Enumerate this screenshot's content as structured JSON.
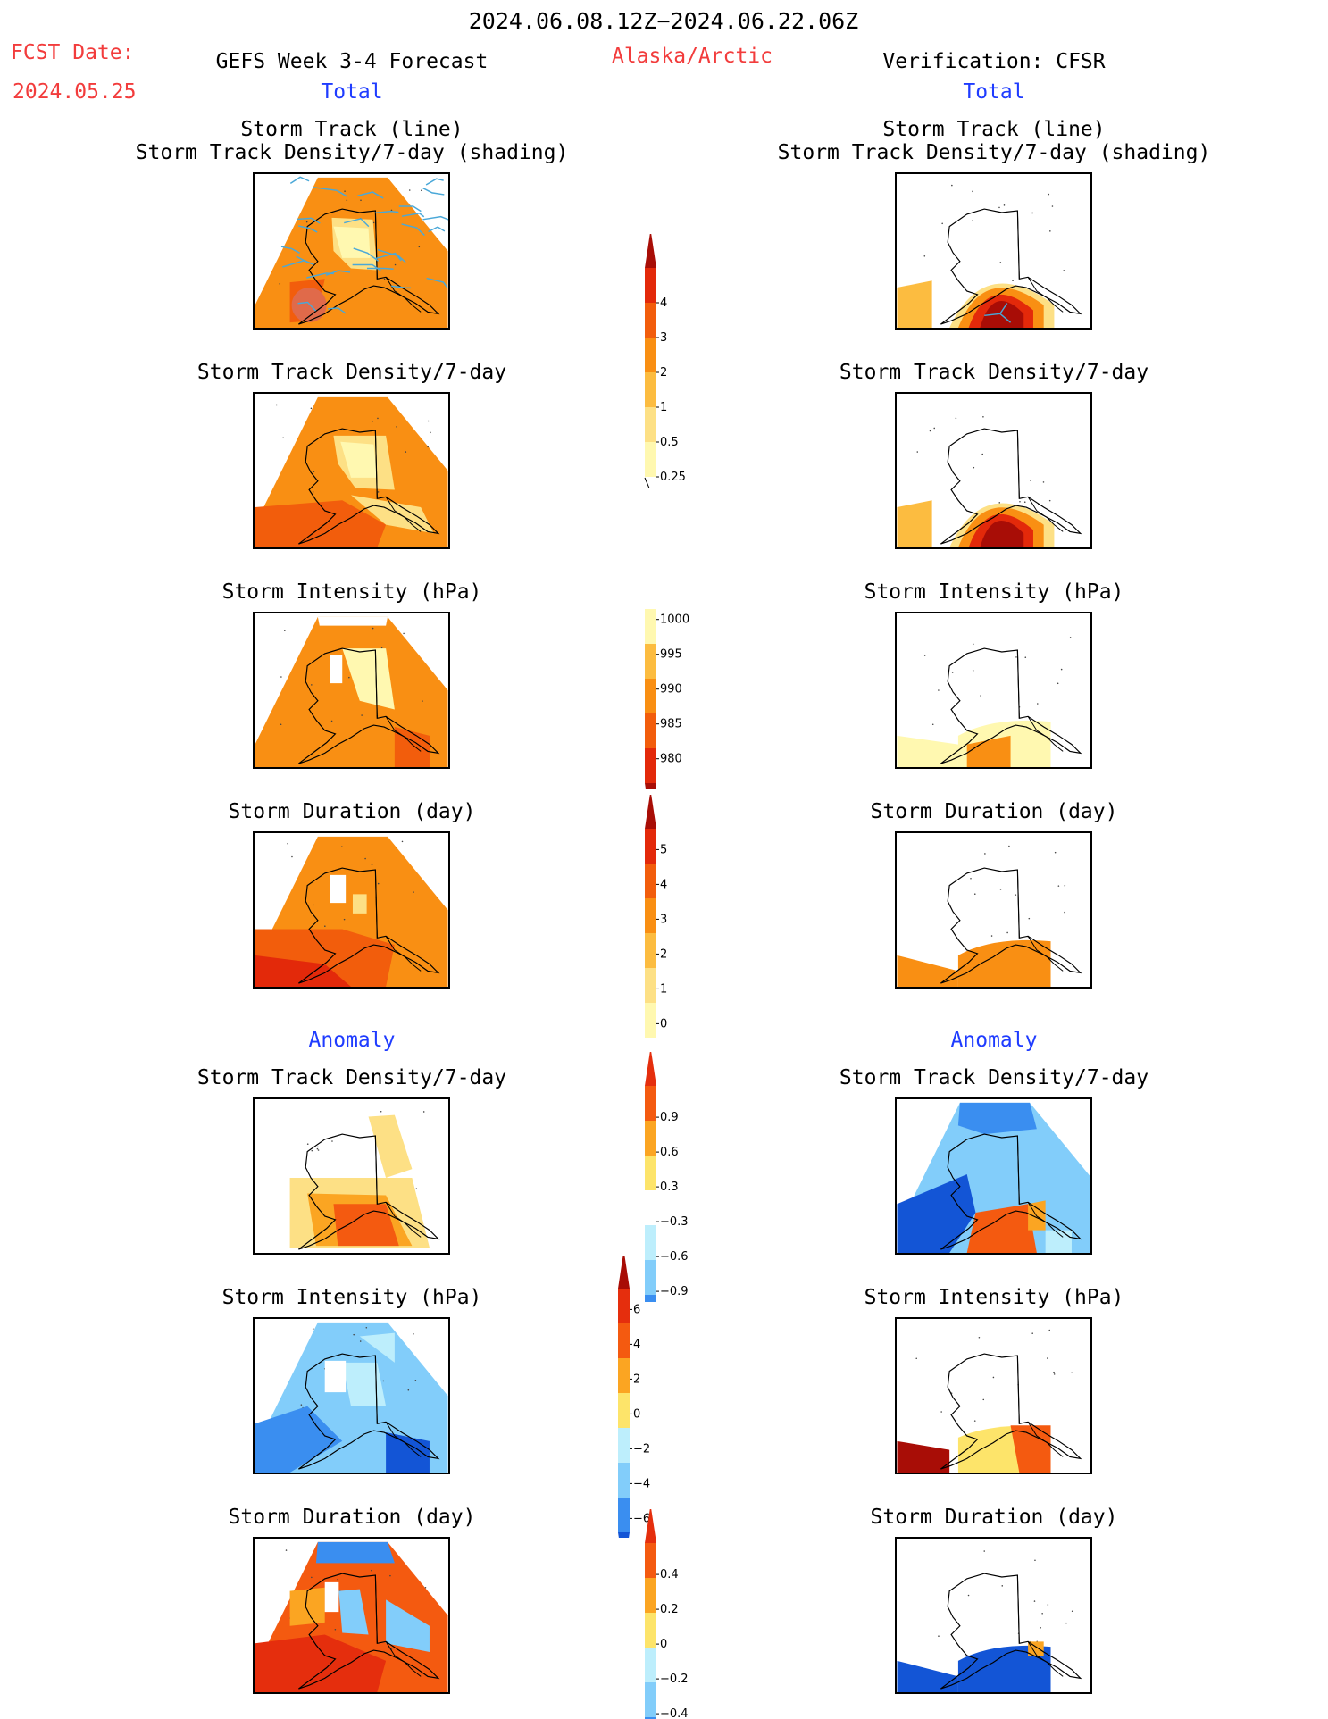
{
  "header": {
    "date_range": "2024.06.08.12Z−2024.06.22.06Z",
    "fcst_label": "FCST Date:",
    "fcst_date": "2024.05.25",
    "left_title": "GEFS Week 3-4 Forecast",
    "region": "Alaska/Arctic",
    "right_title": "Verification: CFSR",
    "left_total": "Total",
    "right_total": "Total",
    "left_anomaly": "Anomaly",
    "right_anomaly": "Anomaly"
  },
  "panel_titles": {
    "track_line": "Storm Track (line)",
    "track_shading": "Storm Track Density/7-day (shading)",
    "density": "Storm Track Density/7-day",
    "intensity": "Storm Intensity (hPa)",
    "duration": "Storm Duration (day)"
  },
  "colorbars": {
    "density": [
      "4",
      "3",
      "2",
      "1",
      "0.5",
      "0.25"
    ],
    "intensity": [
      "1000",
      "995",
      "990",
      "985",
      "980"
    ],
    "duration": [
      "5",
      "4",
      "3",
      "2",
      "1",
      "0"
    ],
    "anom_density": [
      "0.9",
      "0.6",
      "0.3",
      "−0.3",
      "−0.6",
      "−0.9"
    ],
    "anom_intensity": [
      "6",
      "4",
      "2",
      "0",
      "−2",
      "−4",
      "−6"
    ],
    "anom_duration": [
      "0.4",
      "0.2",
      "0",
      "−0.2",
      "−0.4"
    ]
  },
  "palettes": {
    "warm": [
      "#fff8b0",
      "#fde085",
      "#fcbc40",
      "#f98f13",
      "#f25d0c",
      "#e3290a",
      "#a80d06"
    ],
    "diverging": [
      "#1355d6",
      "#3a8ef0",
      "#82cdfa",
      "#bdeefc",
      "#ffffff",
      "#fff2a0",
      "#fde46a",
      "#fba522",
      "#f45a10",
      "#e52e0d",
      "#a80d06"
    ]
  }
}
